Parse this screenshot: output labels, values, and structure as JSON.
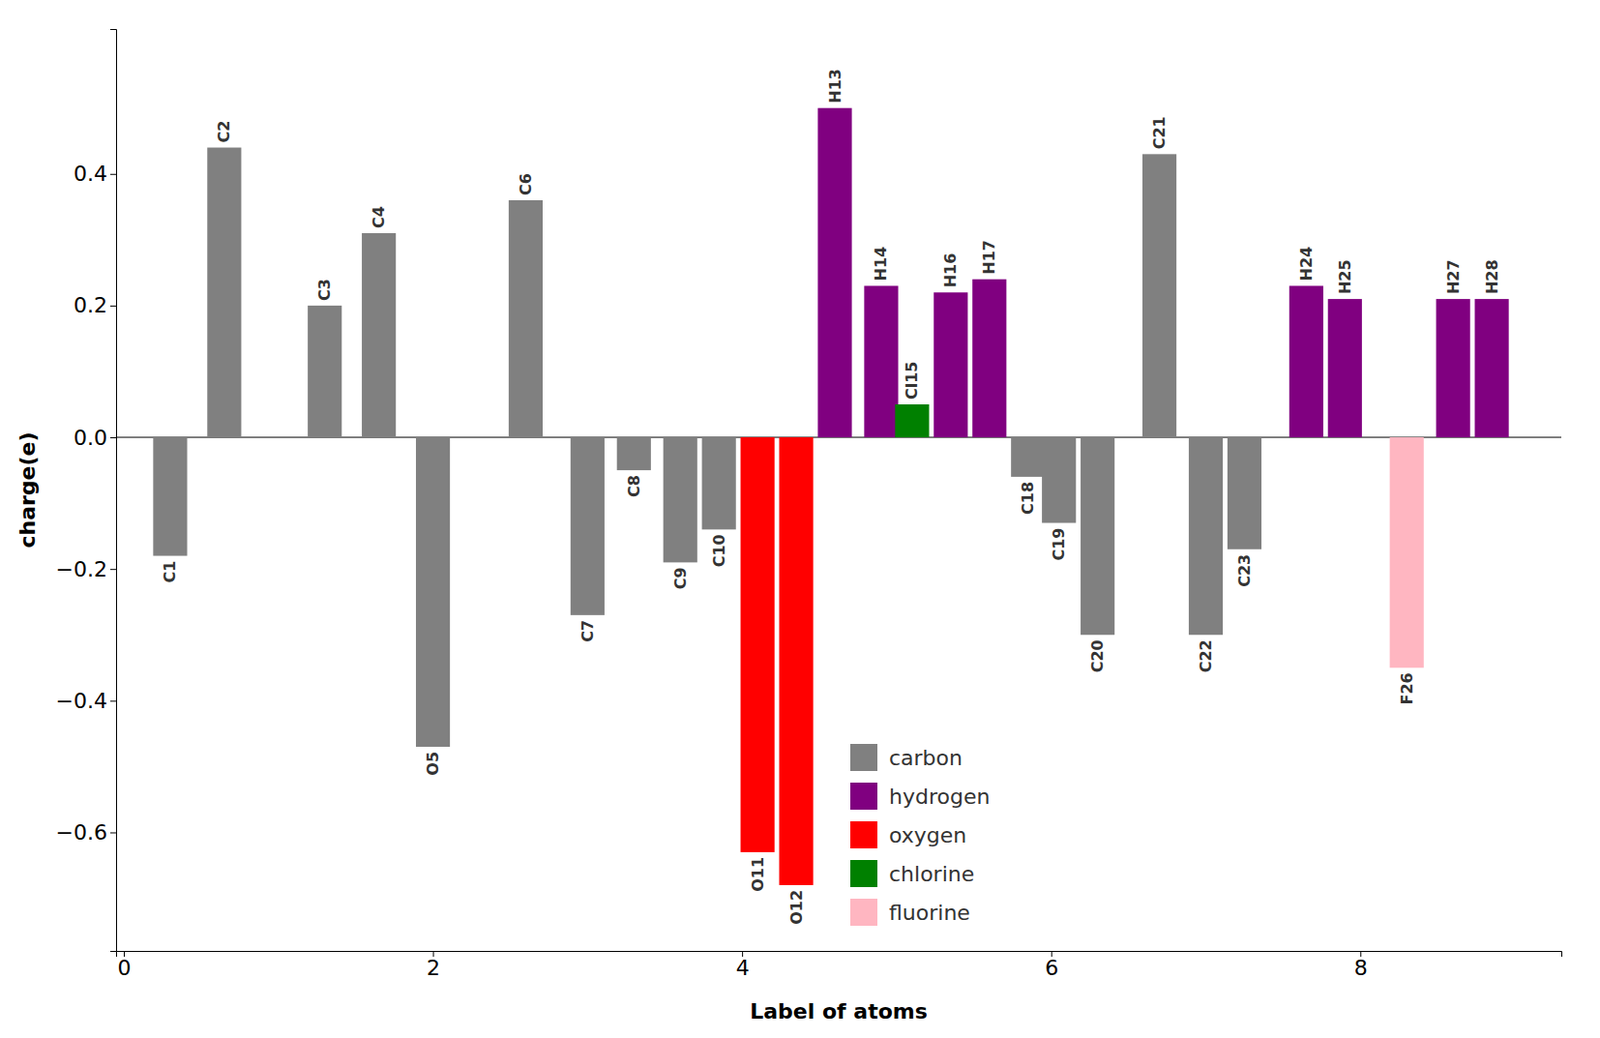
{
  "chart_data": {
    "type": "bar",
    "xlabel": "Label of atoms",
    "ylabel": "charge(e)",
    "series": [
      {
        "name": "carbon",
        "color": "#808080",
        "categories": [
          "C1",
          "C2",
          "C3",
          "C4",
          "O5",
          "C6",
          "C7",
          "C8",
          "C9",
          "C10",
          "C18",
          "C19",
          "C20",
          "C21",
          "C22",
          "C23"
        ],
        "x": [
          0.3,
          0.65,
          1.3,
          1.65,
          2.0,
          2.6,
          3.0,
          3.3,
          3.6,
          3.85,
          5.85,
          6.05,
          6.3,
          6.7,
          7.0,
          7.25
        ],
        "values": [
          -0.18,
          0.44,
          0.2,
          0.31,
          -0.47,
          0.36,
          -0.27,
          -0.05,
          -0.19,
          -0.14,
          -0.06,
          -0.13,
          -0.3,
          0.43,
          -0.3,
          -0.17
        ]
      },
      {
        "name": "hydrogen",
        "color": "#800080",
        "categories": [
          "H13",
          "H14",
          "H16",
          "H17",
          "H24",
          "H25",
          "H27",
          "H28"
        ],
        "x": [
          4.6,
          4.9,
          5.35,
          5.6,
          7.65,
          7.9,
          8.6,
          8.85
        ],
        "values": [
          0.5,
          0.23,
          0.22,
          0.24,
          0.23,
          0.21,
          0.21,
          0.21
        ]
      },
      {
        "name": "oxygen",
        "color": "red",
        "categories": [
          "O11",
          "O12"
        ],
        "x": [
          4.1,
          4.35
        ],
        "values": [
          -0.63,
          -0.68
        ]
      },
      {
        "name": "chlorine",
        "color": "#008000",
        "categories": [
          "Cl15"
        ],
        "x": [
          5.1
        ],
        "values": [
          0.05
        ]
      },
      {
        "name": "fluorine",
        "color": "#ffb6c1",
        "categories": [
          "F26"
        ],
        "x": [
          8.3
        ],
        "values": [
          -0.35
        ]
      }
    ],
    "xlim": [
      -0.05,
      9.3
    ],
    "ylim": [
      -0.78,
      0.62
    ],
    "xticks": [
      0,
      2,
      4,
      6,
      8
    ],
    "yticks": [
      {
        "value": -0.6,
        "label": "−0.6"
      },
      {
        "value": -0.4,
        "label": "−0.4"
      },
      {
        "value": -0.2,
        "label": "−0.2"
      },
      {
        "value": 0.0,
        "label": "0.0"
      },
      {
        "value": 0.2,
        "label": "0.2"
      },
      {
        "value": 0.4,
        "label": "0.4"
      }
    ],
    "grid": false,
    "legend": "lower center"
  }
}
